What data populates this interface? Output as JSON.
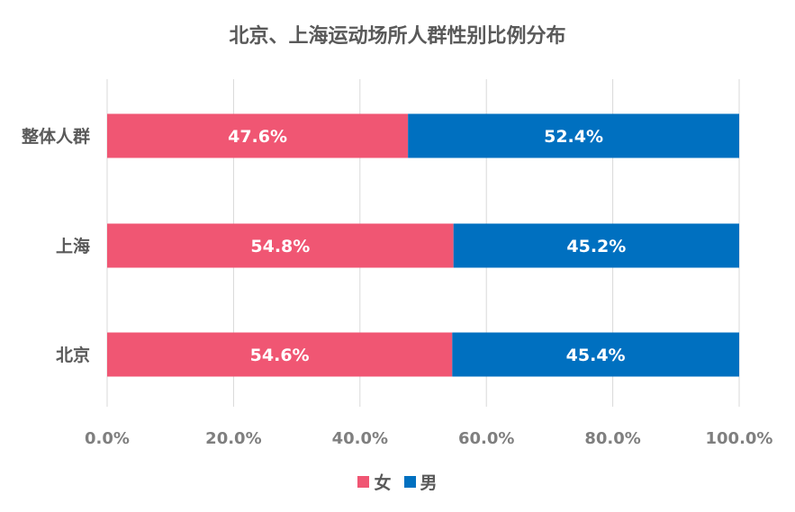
{
  "chart_data": {
    "type": "bar",
    "orientation": "horizontal",
    "stacked": true,
    "title": "北京、上海运动场所人群性别比例分布",
    "categories": [
      "整体人群",
      "上海",
      "北京"
    ],
    "series": [
      {
        "name": "女",
        "color": "#F05673",
        "values": [
          47.6,
          54.8,
          54.6
        ],
        "labels": [
          "47.6%",
          "54.8%",
          "54.6%"
        ]
      },
      {
        "name": "男",
        "color": "#0070C0",
        "values": [
          52.4,
          45.2,
          45.4
        ],
        "labels": [
          "52.4%",
          "45.2%",
          "45.4%"
        ]
      }
    ],
    "xlim": [
      0,
      100
    ],
    "xticks": [
      0,
      20,
      40,
      60,
      80,
      100
    ],
    "xtick_labels": [
      "0.0%",
      "20.0%",
      "40.0%",
      "60.0%",
      "80.0%",
      "100.0%"
    ],
    "grid": true,
    "legend_position": "bottom"
  }
}
